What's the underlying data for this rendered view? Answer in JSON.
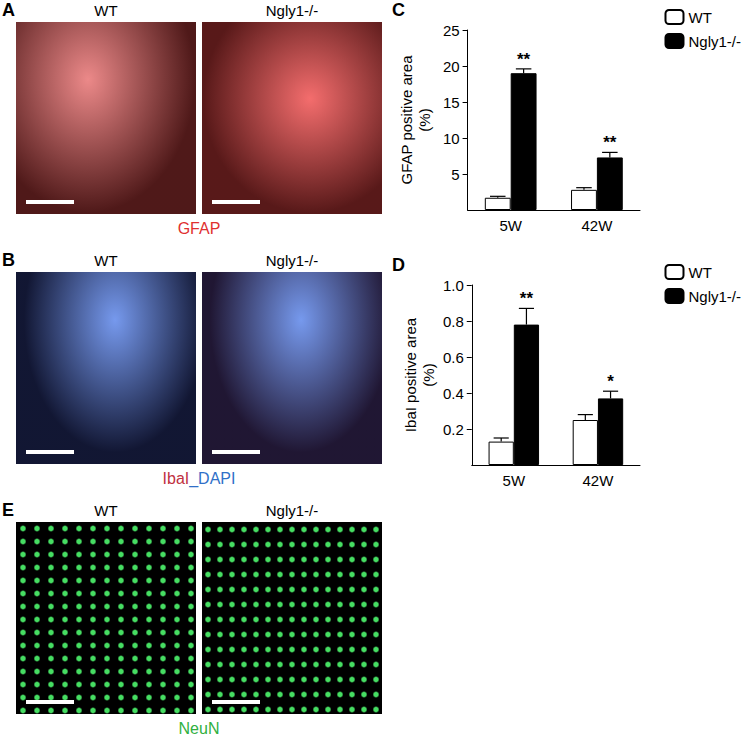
{
  "panels": [
    {
      "panel": "A",
      "left": "WT",
      "right": "Ngly1-/-",
      "caption": [
        {
          "text": "GFAP",
          "color": "#e03030"
        }
      ]
    },
    {
      "panel": "B",
      "left": "WT",
      "right": "Ngly1-/-",
      "caption": [
        {
          "text": "IbaI",
          "color": "#c03040"
        },
        {
          "text": "_DAPI",
          "color": "#3070c8"
        }
      ]
    },
    {
      "panel": "E",
      "left": "WT",
      "right": "Ngly1-/-",
      "caption": [
        {
          "text": "NeuN",
          "color": "#30b040"
        }
      ]
    }
  ],
  "chart_data": [
    {
      "type": "bar",
      "panel": "C",
      "ylabel": "GFAP positive area\n(%)",
      "categories": [
        "5W",
        "42W"
      ],
      "series": [
        {
          "name": "WT",
          "color": "#ffffff",
          "values": [
            1.7,
            2.8
          ],
          "errors": [
            0.2,
            0.3
          ]
        },
        {
          "name": "Ngly1-/-",
          "color": "#000000",
          "values": [
            19.0,
            7.3
          ],
          "errors": [
            0.6,
            0.7
          ],
          "significance": [
            "**",
            "**"
          ]
        }
      ],
      "ylim": [
        0,
        25
      ],
      "yticks": [
        5,
        10,
        15,
        20,
        25
      ],
      "grid": false,
      "legend": "upper right"
    },
    {
      "type": "bar",
      "panel": "D",
      "ylabel": "IbaI positive area\n(%)",
      "categories": [
        "5W",
        "42W"
      ],
      "series": [
        {
          "name": "WT",
          "color": "#ffffff",
          "values": [
            0.13,
            0.25
          ],
          "errors": [
            0.02,
            0.03
          ]
        },
        {
          "name": "Ngly1-/-",
          "color": "#000000",
          "values": [
            0.78,
            0.37
          ],
          "errors": [
            0.09,
            0.04
          ],
          "significance": [
            "**",
            "*"
          ]
        }
      ],
      "ylim": [
        0,
        1
      ],
      "yticks": [
        0.2,
        0.4,
        0.6,
        0.8,
        {
          "value": 1,
          "label": "1.0"
        }
      ],
      "grid": false,
      "legend": "upper right"
    }
  ]
}
